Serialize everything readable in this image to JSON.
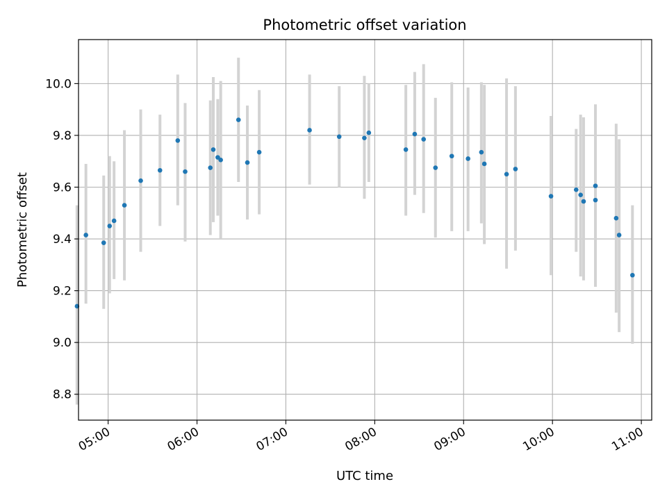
{
  "chart_data": {
    "type": "scatter",
    "title": "Photometric offset variation",
    "xlabel": "UTC time",
    "ylabel": "Photometric offset",
    "xlim": [
      "04:40",
      "11:07"
    ],
    "ylim": [
      8.7,
      10.17
    ],
    "x_ticks": [
      "05:00",
      "06:00",
      "07:00",
      "08:00",
      "09:00",
      "10:00",
      "11:00"
    ],
    "y_ticks": [
      "8.8",
      "9.0",
      "9.2",
      "9.4",
      "9.6",
      "9.8",
      "10.0"
    ],
    "grid": true,
    "marker_color": "#1f77b4",
    "errorbar_color": "#d3d3d3",
    "points": [
      {
        "x": "04:39",
        "y": 9.14,
        "ylo": 8.76,
        "yhi": 9.53
      },
      {
        "x": "04:45",
        "y": 9.415,
        "ylo": 9.15,
        "yhi": 9.69
      },
      {
        "x": "04:57",
        "y": 9.385,
        "ylo": 9.13,
        "yhi": 9.645
      },
      {
        "x": "05:01",
        "y": 9.45,
        "ylo": 9.19,
        "yhi": 9.72
      },
      {
        "x": "05:04",
        "y": 9.47,
        "ylo": 9.245,
        "yhi": 9.7
      },
      {
        "x": "05:11",
        "y": 9.53,
        "ylo": 9.24,
        "yhi": 9.82
      },
      {
        "x": "05:22",
        "y": 9.625,
        "ylo": 9.35,
        "yhi": 9.9
      },
      {
        "x": "05:35",
        "y": 9.665,
        "ylo": 9.45,
        "yhi": 9.88
      },
      {
        "x": "05:47",
        "y": 9.78,
        "ylo": 9.53,
        "yhi": 10.035
      },
      {
        "x": "05:52",
        "y": 9.66,
        "ylo": 9.39,
        "yhi": 9.925
      },
      {
        "x": "06:09",
        "y": 9.675,
        "ylo": 9.415,
        "yhi": 9.935
      },
      {
        "x": "06:11",
        "y": 9.745,
        "ylo": 9.465,
        "yhi": 10.025
      },
      {
        "x": "06:14",
        "y": 9.715,
        "ylo": 9.49,
        "yhi": 9.94
      },
      {
        "x": "06:16",
        "y": 9.705,
        "ylo": 9.4,
        "yhi": 10.01
      },
      {
        "x": "06:28",
        "y": 9.86,
        "ylo": 9.62,
        "yhi": 10.1
      },
      {
        "x": "06:34",
        "y": 9.695,
        "ylo": 9.475,
        "yhi": 9.915
      },
      {
        "x": "06:42",
        "y": 9.735,
        "ylo": 9.495,
        "yhi": 9.975
      },
      {
        "x": "07:16",
        "y": 9.82,
        "ylo": 9.61,
        "yhi": 10.035
      },
      {
        "x": "07:36",
        "y": 9.795,
        "ylo": 9.6,
        "yhi": 9.99
      },
      {
        "x": "07:53",
        "y": 9.79,
        "ylo": 9.555,
        "yhi": 10.03
      },
      {
        "x": "07:56",
        "y": 9.81,
        "ylo": 9.62,
        "yhi": 10.0
      },
      {
        "x": "08:21",
        "y": 9.745,
        "ylo": 9.49,
        "yhi": 9.995
      },
      {
        "x": "08:27",
        "y": 9.805,
        "ylo": 9.57,
        "yhi": 10.045
      },
      {
        "x": "08:33",
        "y": 9.785,
        "ylo": 9.5,
        "yhi": 10.075
      },
      {
        "x": "08:41",
        "y": 9.675,
        "ylo": 9.405,
        "yhi": 9.945
      },
      {
        "x": "08:52",
        "y": 9.72,
        "ylo": 9.43,
        "yhi": 10.005
      },
      {
        "x": "09:03",
        "y": 9.71,
        "ylo": 9.43,
        "yhi": 9.985
      },
      {
        "x": "09:12",
        "y": 9.735,
        "ylo": 9.46,
        "yhi": 10.005
      },
      {
        "x": "09:14",
        "y": 9.69,
        "ylo": 9.38,
        "yhi": 9.995
      },
      {
        "x": "09:29",
        "y": 9.65,
        "ylo": 9.285,
        "yhi": 10.02
      },
      {
        "x": "09:35",
        "y": 9.67,
        "ylo": 9.355,
        "yhi": 9.99
      },
      {
        "x": "09:59",
        "y": 9.565,
        "ylo": 9.26,
        "yhi": 9.875
      },
      {
        "x": "10:16",
        "y": 9.59,
        "ylo": 9.35,
        "yhi": 9.825
      },
      {
        "x": "10:19",
        "y": 9.57,
        "ylo": 9.255,
        "yhi": 9.88
      },
      {
        "x": "10:21",
        "y": 9.545,
        "ylo": 9.24,
        "yhi": 9.87
      },
      {
        "x": "10:29",
        "y": 9.605,
        "ylo": 9.215,
        "yhi": 9.92
      },
      {
        "x": "10:29",
        "y": 9.55,
        "ylo": 9.215,
        "yhi": 9.88
      },
      {
        "x": "10:43",
        "y": 9.48,
        "ylo": 9.115,
        "yhi": 9.845
      },
      {
        "x": "10:45",
        "y": 9.415,
        "ylo": 9.04,
        "yhi": 9.785
      },
      {
        "x": "10:54",
        "y": 9.26,
        "ylo": 8.995,
        "yhi": 9.53
      }
    ]
  }
}
